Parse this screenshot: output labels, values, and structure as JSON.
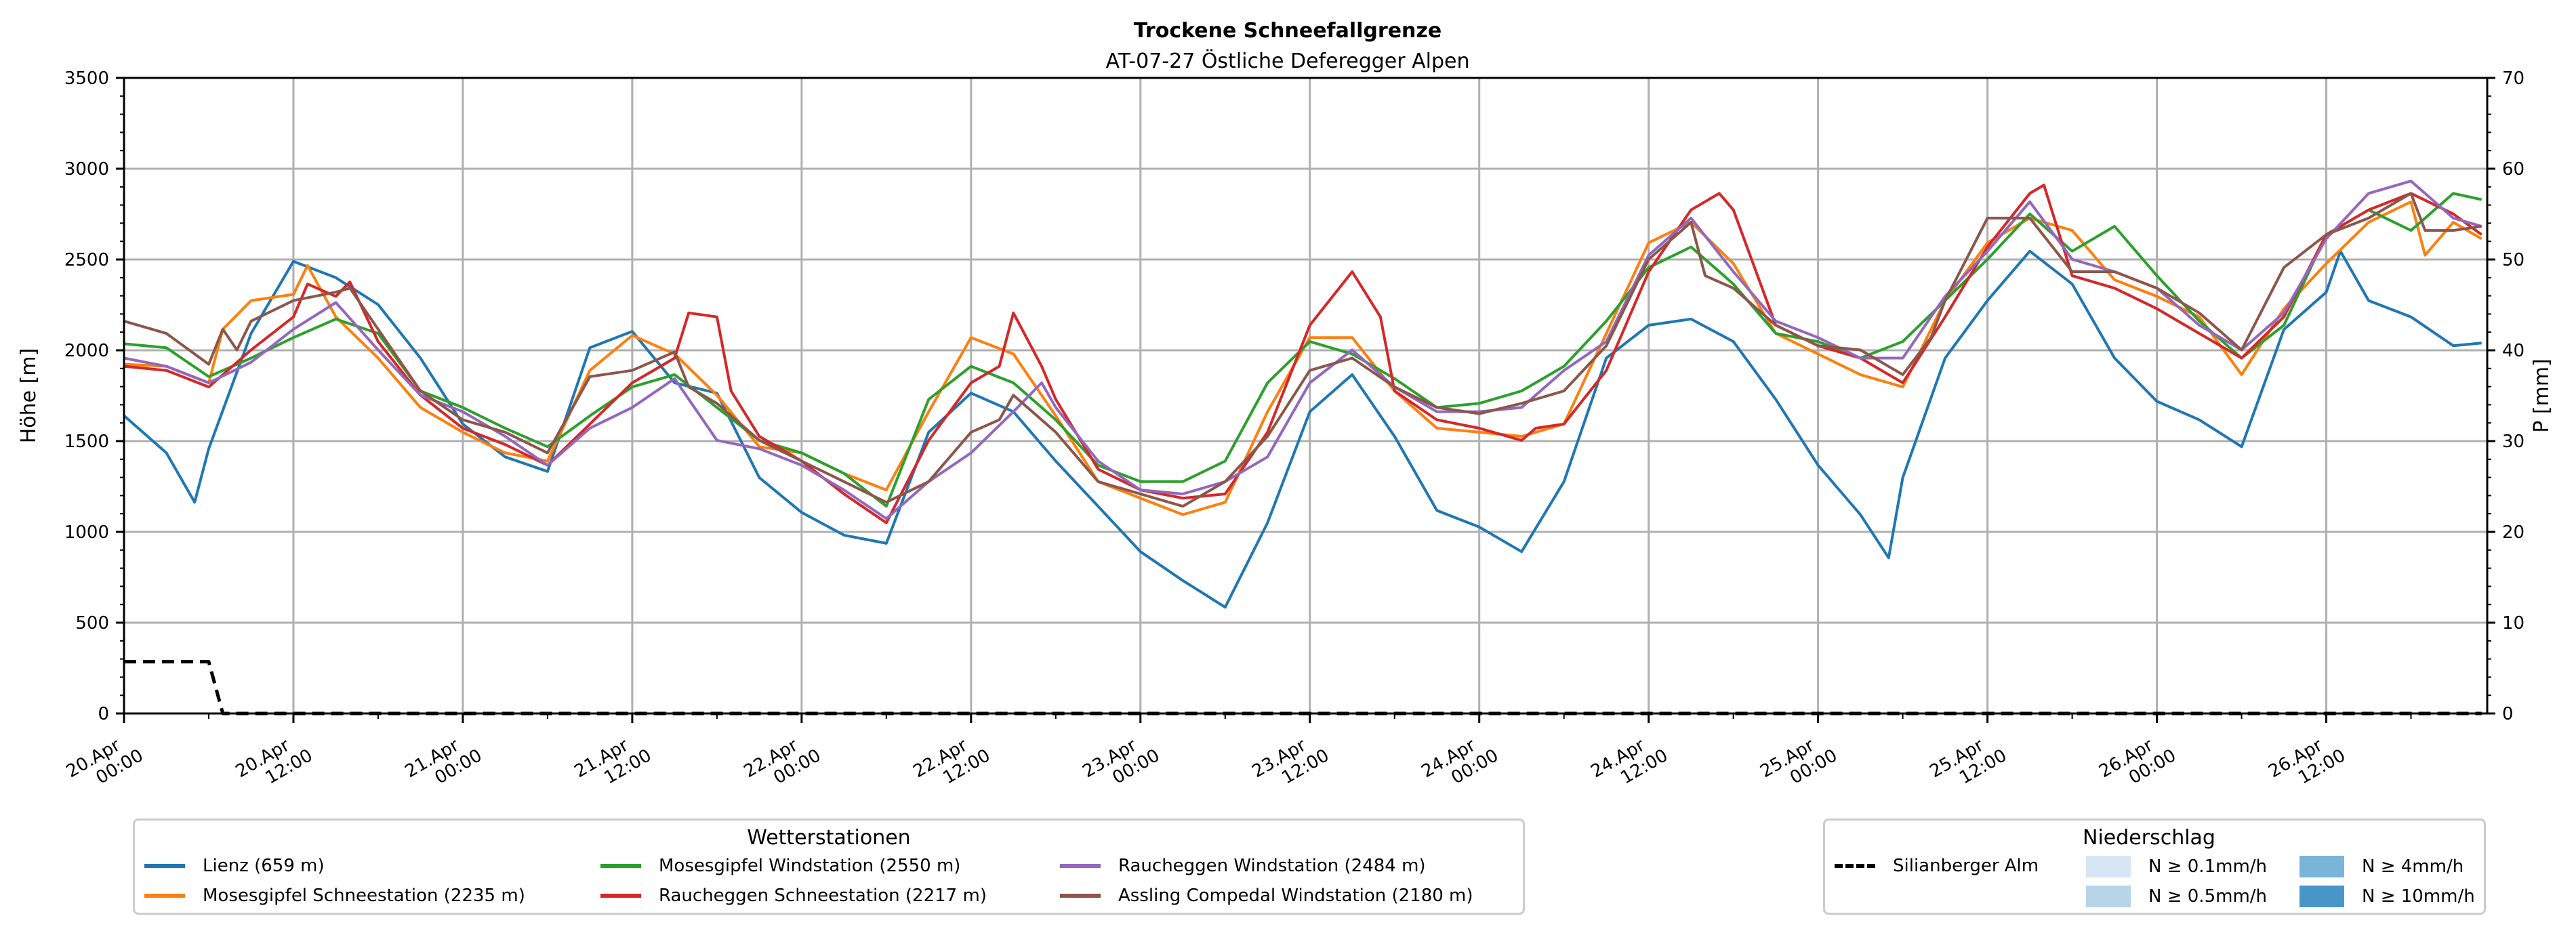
{
  "chart_data": {
    "type": "line",
    "title": "Trockene Schneefallgrenze",
    "subtitle": "AT-07-27 Östliche Deferegger Alpen",
    "ylabel": "Höhe [m]",
    "y2label": "P [mm]",
    "ylim": [
      0,
      3500
    ],
    "y2lim": [
      0,
      70
    ],
    "yticks": [
      0,
      500,
      1000,
      1500,
      2000,
      2500,
      3000,
      3500
    ],
    "y2ticks": [
      0,
      10,
      20,
      30,
      40,
      50,
      60,
      70
    ],
    "x_unit": "hours since 20.Apr 00:00",
    "xlim": [
      0,
      167
    ],
    "xticks": [
      {
        "h": 0,
        "line1": "20.Apr",
        "line2": "00:00"
      },
      {
        "h": 12,
        "line1": "20.Apr",
        "line2": "12:00"
      },
      {
        "h": 24,
        "line1": "21.Apr",
        "line2": "00:00"
      },
      {
        "h": 36,
        "line1": "21.Apr",
        "line2": "12:00"
      },
      {
        "h": 48,
        "line1": "22.Apr",
        "line2": "00:00"
      },
      {
        "h": 60,
        "line1": "22.Apr",
        "line2": "12:00"
      },
      {
        "h": 72,
        "line1": "23.Apr",
        "line2": "00:00"
      },
      {
        "h": 84,
        "line1": "23.Apr",
        "line2": "12:00"
      },
      {
        "h": 96,
        "line1": "24.Apr",
        "line2": "00:00"
      },
      {
        "h": 108,
        "line1": "24.Apr",
        "line2": "12:00"
      },
      {
        "h": 120,
        "line1": "25.Apr",
        "line2": "00:00"
      },
      {
        "h": 132,
        "line1": "25.Apr",
        "line2": "12:00"
      },
      {
        "h": 144,
        "line1": "26.Apr",
        "line2": "00:00"
      },
      {
        "h": 156,
        "line1": "26.Apr",
        "line2": "12:00"
      }
    ],
    "grid": true,
    "series": [
      {
        "name": "Lienz (659 m)",
        "color": "#1f77b4",
        "axis": "left",
        "x": [
          0,
          3,
          5,
          6,
          9,
          12,
          15,
          18,
          21,
          24,
          27,
          30,
          33,
          36,
          39,
          42,
          45,
          48,
          51,
          54,
          57,
          60,
          63,
          66,
          69,
          72,
          75,
          78,
          81,
          84,
          87,
          90,
          93,
          96,
          99,
          102,
          105,
          108,
          111,
          114,
          117,
          120,
          123,
          125,
          126,
          129,
          132,
          135,
          138,
          141,
          144,
          147,
          150,
          153,
          156,
          157,
          159,
          162,
          165,
          167
        ],
        "y": [
          1640,
          1435,
          1163,
          1458,
          2093,
          2490,
          2400,
          2252,
          1957,
          1594,
          1413,
          1333,
          2014,
          2104,
          1821,
          1764,
          1299,
          1107,
          982,
          937,
          1549,
          1764,
          1662,
          1390,
          1141,
          891,
          732,
          585,
          1050,
          1662,
          1866,
          1526,
          1118,
          1027,
          891,
          1277,
          1957,
          2138,
          2172,
          2048,
          1730,
          1367,
          1095,
          857,
          1299,
          1957,
          2274,
          2546,
          2365,
          1957,
          1719,
          1617,
          1469,
          2115,
          2320,
          2546,
          2274,
          2184,
          2025,
          2040
        ]
      },
      {
        "name": "Mosesgipfel Schneestation (2235 m)",
        "color": "#ff7f0e",
        "axis": "left",
        "x": [
          0,
          3,
          6,
          7,
          9,
          12,
          13,
          15,
          18,
          21,
          24,
          27,
          30,
          33,
          36,
          39,
          42,
          45,
          48,
          51,
          54,
          57,
          60,
          63,
          66,
          69,
          72,
          75,
          78,
          81,
          84,
          87,
          90,
          93,
          96,
          99,
          102,
          105,
          108,
          111,
          114,
          117,
          120,
          123,
          126,
          129,
          132,
          135,
          138,
          141,
          144,
          147,
          150,
          153,
          156,
          159,
          162,
          163,
          165,
          167
        ],
        "y": [
          1923,
          1912,
          1821,
          2116,
          2274,
          2308,
          2467,
          2184,
          1957,
          1685,
          1549,
          1435,
          1390,
          1889,
          2082,
          1980,
          1753,
          1469,
          1435,
          1322,
          1231,
          1662,
          2070,
          1980,
          1639,
          1277,
          1186,
          1095,
          1163,
          1662,
          2070,
          2070,
          1776,
          1571,
          1549,
          1526,
          1594,
          2093,
          2592,
          2705,
          2478,
          2093,
          1980,
          1866,
          1798,
          2274,
          2592,
          2728,
          2660,
          2388,
          2297,
          2184,
          1866,
          2229,
          2478,
          2705,
          2818,
          2524,
          2705,
          2614
        ]
      },
      {
        "name": "Mosesgipfel Windstation (2550 m)",
        "color": "#2ca02c",
        "axis": "left",
        "x": [
          0,
          3,
          6,
          9,
          12,
          15,
          18,
          21,
          24,
          27,
          30,
          33,
          36,
          39,
          42,
          45,
          48,
          51,
          54,
          57,
          60,
          63,
          66,
          69,
          72,
          75,
          78,
          81,
          84,
          87,
          90,
          93,
          96,
          99,
          102,
          105,
          108,
          111,
          114,
          117,
          120,
          123,
          126,
          129,
          132,
          135,
          138,
          141,
          144,
          147,
          150,
          153,
          156,
          159,
          162,
          165,
          167
        ],
        "y": [
          2036,
          2014,
          1855,
          1957,
          2070,
          2172,
          2093,
          1776,
          1685,
          1571,
          1469,
          1639,
          1798,
          1866,
          1685,
          1504,
          1435,
          1322,
          1141,
          1730,
          1912,
          1821,
          1617,
          1367,
          1277,
          1277,
          1390,
          1821,
          2048,
          1980,
          1844,
          1685,
          1708,
          1776,
          1912,
          2161,
          2456,
          2569,
          2365,
          2093,
          2048,
          1957,
          2048,
          2274,
          2501,
          2751,
          2546,
          2683,
          2411,
          2161,
          1957,
          2138,
          2637,
          2773,
          2660,
          2864,
          2830
        ]
      },
      {
        "name": "Raucheggen Schneestation (2217 m)",
        "color": "#d62728",
        "axis": "left",
        "x": [
          0,
          3,
          6,
          9,
          12,
          13,
          15,
          16,
          18,
          21,
          24,
          27,
          30,
          33,
          36,
          39,
          40,
          42,
          43,
          45,
          48,
          51,
          54,
          57,
          60,
          62,
          63,
          65,
          66,
          69,
          72,
          75,
          78,
          81,
          84,
          87,
          89,
          90,
          93,
          96,
          99,
          100,
          102,
          105,
          108,
          111,
          113,
          114,
          117,
          120,
          123,
          126,
          129,
          132,
          135,
          136,
          138,
          141,
          144,
          147,
          150,
          153,
          156,
          159,
          162,
          165,
          167
        ],
        "y": [
          1912,
          1889,
          1798,
          2002,
          2184,
          2365,
          2297,
          2376,
          2048,
          1753,
          1571,
          1481,
          1367,
          1594,
          1821,
          1957,
          2206,
          2184,
          1776,
          1526,
          1390,
          1209,
          1050,
          1504,
          1821,
          1912,
          2206,
          1912,
          1730,
          1345,
          1231,
          1186,
          1209,
          1549,
          2138,
          2433,
          2184,
          1776,
          1617,
          1571,
          1504,
          1571,
          1594,
          1889,
          2433,
          2773,
          2864,
          2773,
          2138,
          2025,
          1957,
          1821,
          2184,
          2569,
          2864,
          2910,
          2411,
          2342,
          2229,
          2093,
          1957,
          2184,
          2637,
          2773,
          2864,
          2751,
          2637
        ]
      },
      {
        "name": "Raucheggen Windstation (2484 m)",
        "color": "#9467bd",
        "axis": "left",
        "x": [
          0,
          3,
          6,
          9,
          12,
          15,
          18,
          21,
          24,
          27,
          30,
          33,
          36,
          39,
          42,
          45,
          48,
          51,
          54,
          57,
          60,
          63,
          65,
          66,
          69,
          72,
          75,
          78,
          81,
          84,
          87,
          90,
          93,
          96,
          99,
          102,
          105,
          108,
          111,
          114,
          117,
          120,
          123,
          126,
          129,
          132,
          135,
          138,
          141,
          144,
          147,
          150,
          153,
          156,
          159,
          162,
          165,
          167
        ],
        "y": [
          1957,
          1912,
          1821,
          1934,
          2116,
          2263,
          2002,
          1753,
          1662,
          1526,
          1367,
          1571,
          1685,
          1844,
          1504,
          1458,
          1367,
          1231,
          1073,
          1277,
          1435,
          1662,
          1821,
          1685,
          1390,
          1231,
          1209,
          1277,
          1413,
          1821,
          2002,
          1798,
          1662,
          1662,
          1685,
          1889,
          2048,
          2524,
          2728,
          2433,
          2161,
          2070,
          1957,
          1957,
          2297,
          2546,
          2818,
          2501,
          2433,
          2342,
          2138,
          2002,
          2206,
          2614,
          2864,
          2932,
          2728,
          2683
        ]
      },
      {
        "name": "Assling Compedal Windstation (2180 m)",
        "color": "#8c564b",
        "axis": "left",
        "x": [
          0,
          3,
          6,
          7,
          8,
          9,
          12,
          15,
          16,
          18,
          21,
          24,
          27,
          30,
          33,
          36,
          39,
          40,
          42,
          45,
          48,
          51,
          54,
          57,
          60,
          62,
          63,
          66,
          69,
          72,
          75,
          78,
          81,
          84,
          87,
          90,
          93,
          96,
          99,
          102,
          105,
          108,
          111,
          112,
          114,
          117,
          120,
          123,
          126,
          128,
          129,
          132,
          135,
          138,
          141,
          144,
          147,
          150,
          153,
          156,
          159,
          162,
          163,
          165,
          167
        ],
        "y": [
          2161,
          2093,
          1923,
          2116,
          2002,
          2161,
          2274,
          2320,
          2342,
          2116,
          1776,
          1617,
          1549,
          1435,
          1855,
          1889,
          1991,
          1798,
          1708,
          1504,
          1390,
          1277,
          1163,
          1277,
          1549,
          1617,
          1753,
          1549,
          1277,
          1209,
          1141,
          1277,
          1526,
          1889,
          1957,
          1798,
          1685,
          1651,
          1708,
          1776,
          2025,
          2501,
          2705,
          2411,
          2342,
          2138,
          2025,
          2002,
          1866,
          2070,
          2274,
          2728,
          2728,
          2433,
          2433,
          2342,
          2206,
          2002,
          2456,
          2637,
          2728,
          2864,
          2660,
          2660,
          2683
        ]
      },
      {
        "name": "Silianberger Alm",
        "color": "#000000",
        "axis": "right",
        "dashed": true,
        "x": [
          0,
          6,
          7,
          167
        ],
        "y": [
          5.7,
          5.7,
          0,
          0
        ]
      }
    ],
    "legends": [
      {
        "title": "Wetterstationen",
        "placement": "bottom-left"
      },
      {
        "title": "Niederschlag",
        "placement": "bottom-right"
      }
    ],
    "precip_classes": [
      {
        "label": "N ≥ 0.1mm/h",
        "color": "#d6e6f4"
      },
      {
        "label": "N ≥ 0.5mm/h",
        "color": "#b8d4e9"
      },
      {
        "label": "N ≥ 4mm/h",
        "color": "#7ab5d9"
      },
      {
        "label": "N ≥ 10mm/h",
        "color": "#4896c8"
      }
    ]
  }
}
